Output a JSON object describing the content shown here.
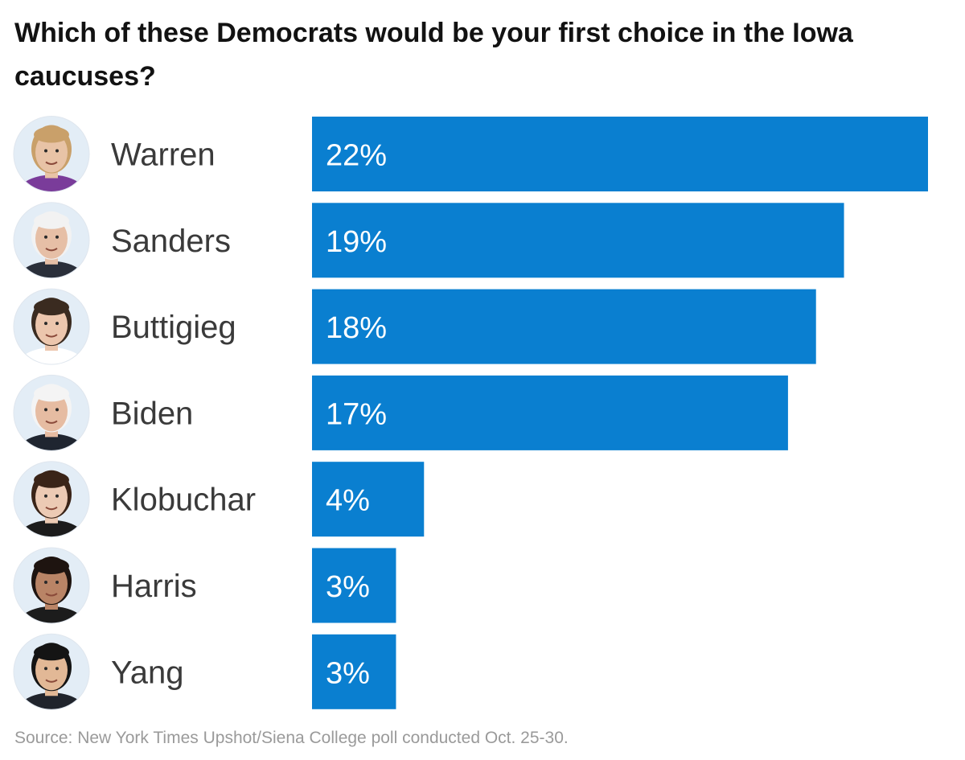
{
  "chart_data": {
    "type": "bar",
    "orientation": "horizontal",
    "title": "Which of these Democrats would be your first choice in the Iowa caucuses?",
    "categories": [
      "Warren",
      "Sanders",
      "Buttigieg",
      "Biden",
      "Klobuchar",
      "Harris",
      "Yang"
    ],
    "values": [
      22,
      19,
      18,
      17,
      4,
      3,
      3
    ],
    "value_labels": [
      "22%",
      "19%",
      "18%",
      "17%",
      "4%",
      "3%",
      "3%"
    ],
    "unit": "%",
    "xlim": [
      0,
      22
    ],
    "bar_color": "#0a7fd0",
    "grid": false,
    "legend": "none",
    "source": "Source: New York Times Upshot/Siena College poll conducted Oct. 25-30.",
    "avatars": [
      {
        "icon": "warren-portrait-icon",
        "skin": "#e8c3a6",
        "hair": "#c9a06a",
        "clothes": "#7a3c9a",
        "bg": "#e3edf6"
      },
      {
        "icon": "sanders-portrait-icon",
        "skin": "#e6bfa6",
        "hair": "#f2f2f2",
        "clothes": "#2a2f3a",
        "bg": "#e3edf6"
      },
      {
        "icon": "buttigieg-portrait-icon",
        "skin": "#ecc6ad",
        "hair": "#3a2b20",
        "clothes": "#ffffff",
        "bg": "#e3edf6"
      },
      {
        "icon": "biden-portrait-icon",
        "skin": "#e6bca2",
        "hair": "#f4f4f4",
        "clothes": "#1f2530",
        "bg": "#e3edf6"
      },
      {
        "icon": "klobuchar-portrait-icon",
        "skin": "#eccab4",
        "hair": "#3a2418",
        "clothes": "#1c1c1c",
        "bg": "#e3edf6"
      },
      {
        "icon": "harris-portrait-icon",
        "skin": "#b98466",
        "hair": "#1e1410",
        "clothes": "#1c1c1c",
        "bg": "#e3edf6"
      },
      {
        "icon": "yang-portrait-icon",
        "skin": "#e2b896",
        "hair": "#141414",
        "clothes": "#20242c",
        "bg": "#e3edf6"
      }
    ]
  }
}
